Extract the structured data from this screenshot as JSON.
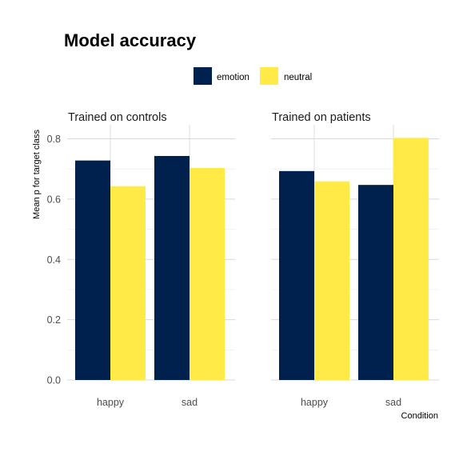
{
  "chart_data": {
    "type": "bar",
    "title": "Model accuracy",
    "xlabel": "Condition",
    "ylabel": "Mean p for target class",
    "ylim": [
      0,
      0.85
    ],
    "yticks": [
      0.0,
      0.2,
      0.4,
      0.6,
      0.8
    ],
    "ytick_labels": [
      "0.0",
      "0.2",
      "0.4",
      "0.6",
      "0.8"
    ],
    "categories": [
      "happy",
      "sad"
    ],
    "legend_position": "top",
    "grid": true,
    "series_colors": {
      "emotion": "#00204d",
      "neutral": "#ffea46"
    },
    "legend": [
      {
        "name": "emotion",
        "color": "#00204d"
      },
      {
        "name": "neutral",
        "color": "#ffea46"
      }
    ],
    "panels": [
      {
        "title": "Trained on controls",
        "series": [
          {
            "name": "emotion",
            "values": [
              0.728,
              0.743
            ]
          },
          {
            "name": "neutral",
            "values": [
              0.643,
              0.703
            ]
          }
        ]
      },
      {
        "title": "Trained on patients",
        "series": [
          {
            "name": "emotion",
            "values": [
              0.693,
              0.647
            ]
          },
          {
            "name": "neutral",
            "values": [
              0.659,
              0.803
            ]
          }
        ]
      }
    ]
  }
}
